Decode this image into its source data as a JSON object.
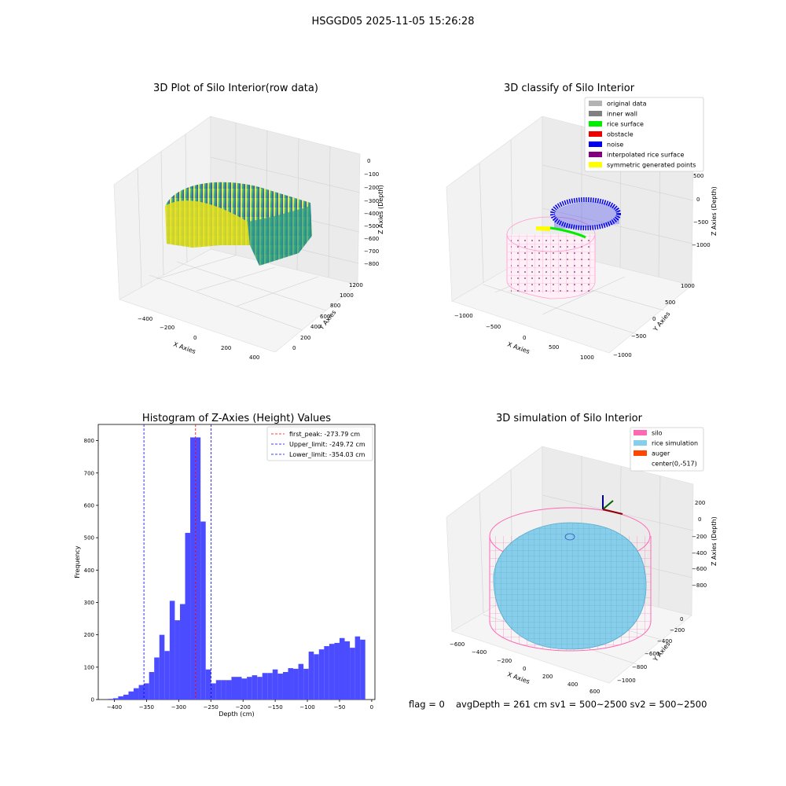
{
  "suptitle": "HSGGD05 2025-11-05 15:26:28",
  "panels": {
    "raw": {
      "title": "3D Plot of Silo Interior(row data)",
      "xlabel": "X Axies",
      "ylabel": "Y Axies",
      "zlabel": "Z Axies (Depth)",
      "xticks": [
        "−400",
        "−200",
        "0",
        "200",
        "400"
      ],
      "yticks": [
        "0",
        "200",
        "400",
        "600",
        "800",
        "1000",
        "1200"
      ],
      "zticks": [
        "0",
        "−100",
        "−200",
        "−300",
        "−400",
        "−500",
        "−600",
        "−700",
        "−800"
      ]
    },
    "classify": {
      "title": "3D classify of Silo Interior",
      "xlabel": "X Axies",
      "ylabel": "Y Axies",
      "zlabel": "Z Axies (Depth)",
      "xticks": [
        "−1000",
        "−500",
        "0",
        "500",
        "1000"
      ],
      "yticks": [
        "−1000",
        "−500",
        "0",
        "500",
        "1000"
      ],
      "zticks": [
        "500",
        "0",
        "−500",
        "−1000"
      ],
      "legend": [
        {
          "label": "original data",
          "color": "#b3b3b3"
        },
        {
          "label": "inner wall",
          "color": "#808080"
        },
        {
          "label": "rice surface",
          "color": "#00ee00"
        },
        {
          "label": "obstacle",
          "color": "#ee0000"
        },
        {
          "label": "noise",
          "color": "#0000ee"
        },
        {
          "label": "interpolated rice surface",
          "color": "#800080"
        },
        {
          "label": "symmetric generated points",
          "color": "#ffff00"
        }
      ]
    },
    "simulation": {
      "title": "3D simulation of Silo Interior",
      "xlabel": "X Axies",
      "ylabel": "Y Axies",
      "zlabel": "Z Axies (Depth)",
      "xticks": [
        "−600",
        "−400",
        "−200",
        "0",
        "200",
        "400",
        "600"
      ],
      "yticks": [
        "0",
        "−200",
        "−400",
        "−600",
        "−800",
        "−1000"
      ],
      "zticks": [
        "200",
        "0",
        "−200",
        "−400",
        "−600",
        "−800"
      ],
      "legend": [
        {
          "label": "silo",
          "color": "#ff69b4"
        },
        {
          "label": "rice simulation",
          "color": "#87ceeb"
        },
        {
          "label": "auger",
          "color": "#ff4500"
        },
        {
          "label": "center(0,-517)",
          "color": ""
        }
      ]
    }
  },
  "footer": {
    "flag": "flag = 0",
    "avg": "avgDepth = 261 cm  sv1 = 500~2500  sv2 = 500~2500"
  },
  "chart_data": {
    "type": "bar",
    "title": "Histogram of Z-Axies (Height) Values",
    "xlabel": "Depth (cm)",
    "ylabel": "Frequency",
    "xlim": [
      -425,
      5
    ],
    "ylim": [
      0,
      850
    ],
    "xticks": [
      -400,
      -350,
      -300,
      -250,
      -200,
      -150,
      -100,
      -50,
      0
    ],
    "xtick_labels": [
      "−400",
      "−350",
      "−300",
      "−250",
      "−200",
      "−150",
      "−100",
      "−50",
      "0"
    ],
    "yticks": [
      0,
      100,
      200,
      300,
      400,
      500,
      600,
      700,
      800
    ],
    "bar_color": "#4b4bff",
    "bins": [
      {
        "x0": -410,
        "x1": -402,
        "count": 2
      },
      {
        "x0": -402,
        "x1": -394,
        "count": 4
      },
      {
        "x0": -394,
        "x1": -386,
        "count": 10
      },
      {
        "x0": -386,
        "x1": -378,
        "count": 15
      },
      {
        "x0": -378,
        "x1": -370,
        "count": 25
      },
      {
        "x0": -370,
        "x1": -362,
        "count": 35
      },
      {
        "x0": -362,
        "x1": -354,
        "count": 45
      },
      {
        "x0": -354,
        "x1": -346,
        "count": 50
      },
      {
        "x0": -346,
        "x1": -338,
        "count": 85
      },
      {
        "x0": -338,
        "x1": -330,
        "count": 130
      },
      {
        "x0": -330,
        "x1": -322,
        "count": 200
      },
      {
        "x0": -322,
        "x1": -314,
        "count": 150
      },
      {
        "x0": -314,
        "x1": -306,
        "count": 305
      },
      {
        "x0": -306,
        "x1": -298,
        "count": 245
      },
      {
        "x0": -298,
        "x1": -290,
        "count": 295
      },
      {
        "x0": -290,
        "x1": -282,
        "count": 515
      },
      {
        "x0": -282,
        "x1": -274,
        "count": 810
      },
      {
        "x0": -274,
        "x1": -266,
        "count": 810
      },
      {
        "x0": -266,
        "x1": -258,
        "count": 550
      },
      {
        "x0": -258,
        "x1": -250,
        "count": 93
      },
      {
        "x0": -250,
        "x1": -242,
        "count": 50
      },
      {
        "x0": -242,
        "x1": -234,
        "count": 60
      },
      {
        "x0": -234,
        "x1": -226,
        "count": 60
      },
      {
        "x0": -226,
        "x1": -218,
        "count": 60
      },
      {
        "x0": -218,
        "x1": -210,
        "count": 70
      },
      {
        "x0": -210,
        "x1": -202,
        "count": 70
      },
      {
        "x0": -202,
        "x1": -194,
        "count": 65
      },
      {
        "x0": -194,
        "x1": -186,
        "count": 70
      },
      {
        "x0": -186,
        "x1": -178,
        "count": 75
      },
      {
        "x0": -178,
        "x1": -170,
        "count": 70
      },
      {
        "x0": -170,
        "x1": -162,
        "count": 82
      },
      {
        "x0": -162,
        "x1": -154,
        "count": 82
      },
      {
        "x0": -154,
        "x1": -146,
        "count": 93
      },
      {
        "x0": -146,
        "x1": -138,
        "count": 80
      },
      {
        "x0": -138,
        "x1": -130,
        "count": 85
      },
      {
        "x0": -130,
        "x1": -122,
        "count": 97
      },
      {
        "x0": -122,
        "x1": -114,
        "count": 95
      },
      {
        "x0": -114,
        "x1": -106,
        "count": 110
      },
      {
        "x0": -106,
        "x1": -98,
        "count": 95
      },
      {
        "x0": -98,
        "x1": -90,
        "count": 148
      },
      {
        "x0": -90,
        "x1": -82,
        "count": 140
      },
      {
        "x0": -82,
        "x1": -74,
        "count": 155
      },
      {
        "x0": -74,
        "x1": -66,
        "count": 165
      },
      {
        "x0": -66,
        "x1": -58,
        "count": 172
      },
      {
        "x0": -58,
        "x1": -50,
        "count": 175
      },
      {
        "x0": -50,
        "x1": -42,
        "count": 190
      },
      {
        "x0": -42,
        "x1": -34,
        "count": 180
      },
      {
        "x0": -34,
        "x1": -26,
        "count": 160
      },
      {
        "x0": -26,
        "x1": -18,
        "count": 195
      },
      {
        "x0": -18,
        "x1": -10,
        "count": 185
      }
    ],
    "vlines": [
      {
        "name": "first_peak",
        "label": "first_peak: -273.79 cm",
        "x": -273.79,
        "color": "#ff0000"
      },
      {
        "name": "upper_limit",
        "label": "Upper_limit: -249.72 cm",
        "x": -249.72,
        "color": "#0000ff"
      },
      {
        "name": "lower_limit",
        "label": "Lower_limit: -354.03 cm",
        "x": -354.03,
        "color": "#0000ff"
      }
    ],
    "legend_position": "upper-right"
  }
}
